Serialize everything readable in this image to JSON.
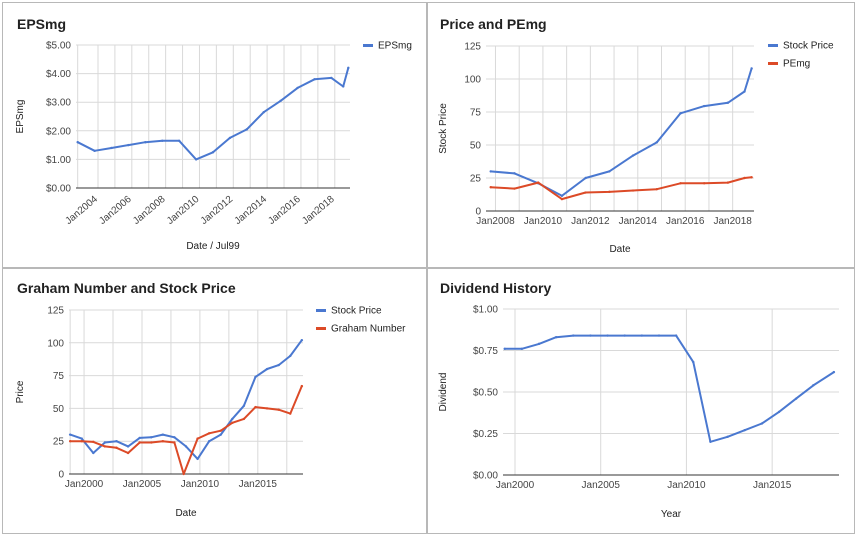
{
  "colors": {
    "blue": "#4a78d0",
    "red": "#dc4a27"
  },
  "chart_data": [
    {
      "type": "line",
      "title": "EPSmg",
      "xlabel": "Date / Jul99",
      "ylabel": "EPSmg",
      "xlim": [
        2002.7,
        2018.9
      ],
      "ylim": [
        0,
        5
      ],
      "yticks": [
        0,
        1,
        2,
        3,
        4,
        5
      ],
      "ytick_labels": [
        "$0.00",
        "$1.00",
        "$2.00",
        "$3.00",
        "$4.00",
        "$5.00"
      ],
      "xticks": [
        2004,
        2006,
        2008,
        2010,
        2012,
        2014,
        2016,
        2018
      ],
      "xtick_labels": [
        "Jan2004",
        "Jan2006",
        "Jan2008",
        "Jan2010",
        "Jan2012",
        "Jan2014",
        "Jan2016",
        "Jan2018"
      ],
      "xtick_rotate": true,
      "vgrid": [
        2002.8,
        2004,
        2005,
        2006,
        2007,
        2008,
        2009,
        2010,
        2011,
        2012,
        2013,
        2014,
        2015,
        2016,
        2017,
        2018
      ],
      "legend": "right",
      "series": [
        {
          "name": "EPSmg",
          "color": "#4a78d0",
          "x": [
            2002.8,
            2003.8,
            2004.8,
            2005.8,
            2006.8,
            2007.8,
            2008.8,
            2009.8,
            2010.8,
            2011.8,
            2012.8,
            2013.8,
            2014.8,
            2015.8,
            2016.8,
            2017.8,
            2018.5,
            2018.8
          ],
          "y": [
            1.6,
            1.3,
            1.4,
            1.5,
            1.6,
            1.65,
            1.65,
            1.0,
            1.25,
            1.75,
            2.05,
            2.65,
            3.05,
            3.5,
            3.8,
            3.85,
            3.55,
            4.2
          ]
        }
      ]
    },
    {
      "type": "line",
      "title": "Price and PEmg",
      "xlabel": "Date",
      "ylabel": "Stock Price",
      "xlim": [
        2007.6,
        2018.9
      ],
      "ylim": [
        0,
        125
      ],
      "yticks": [
        0,
        25,
        50,
        75,
        100,
        125
      ],
      "ytick_labels": [
        "0",
        "25",
        "50",
        "75",
        "100",
        "125"
      ],
      "xticks": [
        2008,
        2010,
        2012,
        2014,
        2016,
        2018
      ],
      "xtick_labels": [
        "Jan2008",
        "Jan2010",
        "Jan2012",
        "Jan2014",
        "Jan2016",
        "Jan2018"
      ],
      "xtick_rotate": false,
      "vgrid": [
        2008,
        2009,
        2010,
        2011,
        2012,
        2013,
        2014,
        2015,
        2016,
        2017,
        2018
      ],
      "legend": "right",
      "series": [
        {
          "name": "Stock Price",
          "color": "#4a78d0",
          "x": [
            2007.8,
            2008.8,
            2009.8,
            2010.8,
            2011.8,
            2012.8,
            2013.8,
            2014.8,
            2015.8,
            2016.8,
            2017.8,
            2018.5,
            2018.8
          ],
          "y": [
            30,
            28.5,
            21,
            11.5,
            25,
            30,
            42,
            52,
            74,
            79.5,
            82,
            90.5,
            108
          ]
        },
        {
          "name": "PEmg",
          "color": "#dc4a27",
          "x": [
            2007.8,
            2008.8,
            2009.8,
            2010.8,
            2011.8,
            2012.8,
            2013.8,
            2014.8,
            2015.8,
            2016.8,
            2017.8,
            2018.5,
            2018.8
          ],
          "y": [
            18,
            17,
            21.5,
            9,
            14,
            14.5,
            15.5,
            16.5,
            21,
            21,
            21.5,
            25,
            25.5
          ]
        }
      ]
    },
    {
      "type": "line",
      "title": "Graham Number and Stock Price",
      "xlabel": "Date",
      "ylabel": "Price",
      "xlim": [
        1998.7,
        2018.9
      ],
      "ylim": [
        0,
        125
      ],
      "yticks": [
        0,
        25,
        50,
        75,
        100,
        125
      ],
      "ytick_labels": [
        "0",
        "25",
        "50",
        "75",
        "100",
        "125"
      ],
      "xticks": [
        2000,
        2005,
        2010,
        2015
      ],
      "xtick_labels": [
        "Jan2000",
        "Jan2005",
        "Jan2010",
        "Jan2015"
      ],
      "xtick_rotate": false,
      "vgrid": [
        1998.8,
        2000,
        2002.5,
        2005,
        2007.5,
        2010,
        2012.5,
        2015,
        2017.5
      ],
      "legend": "right",
      "series": [
        {
          "name": "Stock Price",
          "color": "#4a78d0",
          "x": [
            1998.8,
            1999.8,
            2000.8,
            2001.8,
            2002.8,
            2003.8,
            2004.8,
            2005.8,
            2006.8,
            2007.8,
            2008.8,
            2009.8,
            2010.8,
            2011.8,
            2012.8,
            2013.8,
            2014.8,
            2015.8,
            2016.8,
            2017.8,
            2018.8
          ],
          "y": [
            30,
            27,
            16,
            24,
            25,
            21,
            27.5,
            28,
            30,
            28,
            21,
            11.5,
            25,
            30,
            42,
            52,
            74,
            80,
            83,
            90,
            102
          ]
        },
        {
          "name": "Graham Number",
          "color": "#dc4a27",
          "x": [
            1998.8,
            1999.8,
            2000.8,
            2001.8,
            2002.8,
            2003.8,
            2004.8,
            2005.8,
            2006.8,
            2007.8,
            2008.6,
            2009.8,
            2010.8,
            2011.8,
            2012.8,
            2013.8,
            2014.8,
            2015.8,
            2016.8,
            2017.8,
            2018.8
          ],
          "y": [
            25,
            25,
            24.5,
            21,
            20,
            16,
            24,
            24,
            25,
            24,
            0,
            27,
            31,
            33,
            39,
            42,
            51,
            50,
            49,
            46,
            67
          ]
        }
      ]
    },
    {
      "type": "line",
      "title": "Dividend History",
      "xlabel": "Year",
      "ylabel": "Dividend",
      "xlim": [
        1999.3,
        2018.9
      ],
      "ylim": [
        0,
        1
      ],
      "yticks": [
        0,
        0.25,
        0.5,
        0.75,
        1
      ],
      "ytick_labels": [
        "$0.00",
        "$0.25",
        "$0.50",
        "$0.75",
        "$1.00"
      ],
      "xticks": [
        2000,
        2005,
        2010,
        2015
      ],
      "xtick_labels": [
        "Jan2000",
        "Jan2005",
        "Jan2010",
        "Jan2015"
      ],
      "xtick_rotate": false,
      "vgrid": [
        2000,
        2005,
        2010,
        2015
      ],
      "legend": "none",
      "series": [
        {
          "name": "",
          "color": "#4a78d0",
          "x": [
            1999.4,
            2000.4,
            2001.4,
            2002.4,
            2003.4,
            2004.4,
            2005.4,
            2006.4,
            2007.4,
            2008.4,
            2009.4,
            2010.4,
            2011.4,
            2012.4,
            2013.4,
            2014.4,
            2015.4,
            2016.4,
            2017.4,
            2018.6
          ],
          "y": [
            0.76,
            0.76,
            0.79,
            0.83,
            0.84,
            0.84,
            0.84,
            0.84,
            0.84,
            0.84,
            0.84,
            0.68,
            0.2,
            0.23,
            0.27,
            0.31,
            0.38,
            0.46,
            0.54,
            0.62
          ]
        }
      ]
    }
  ]
}
